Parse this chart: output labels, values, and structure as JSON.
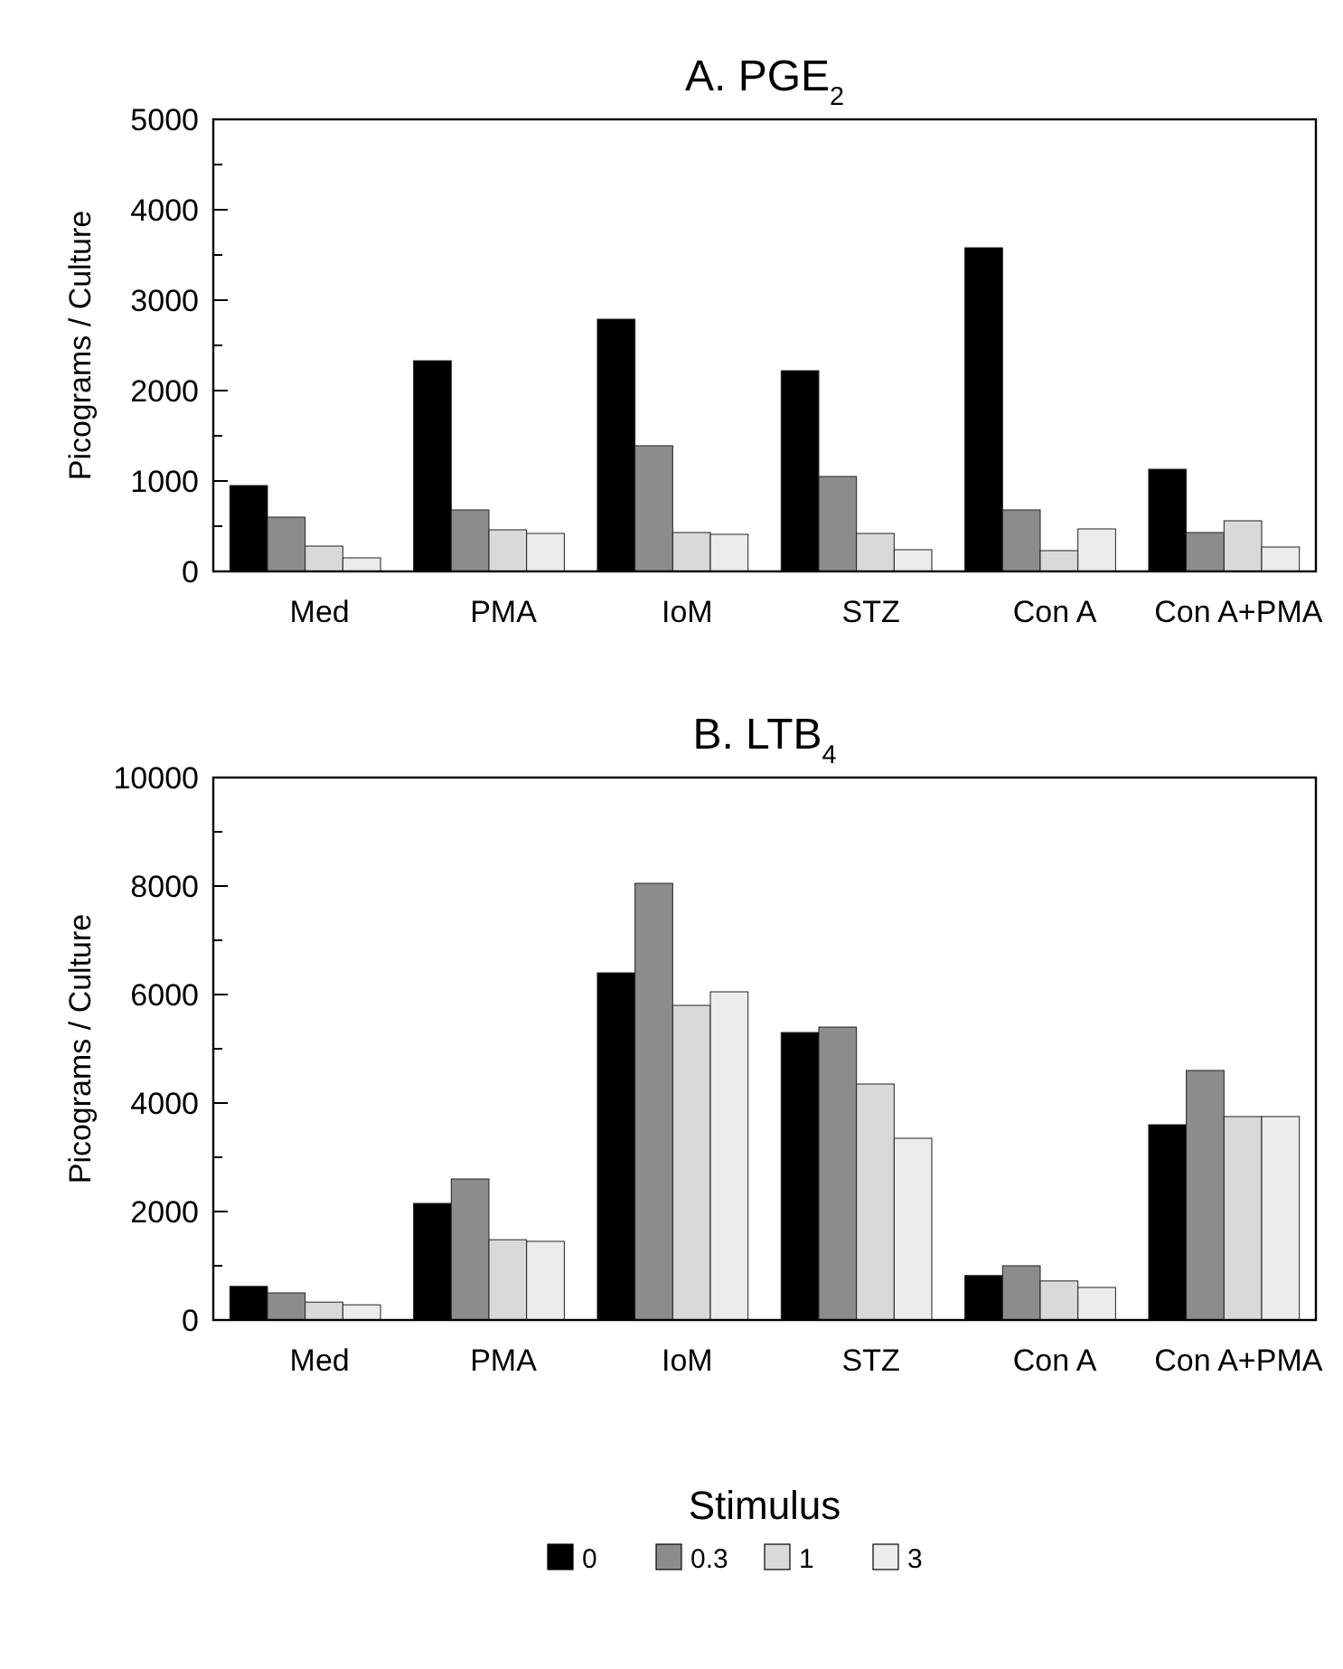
{
  "chart_data": [
    {
      "type": "bar",
      "title": "A. PGE$_{2}$",
      "ylabel": "Picograms / Culture",
      "categories": [
        "Med",
        "PMA",
        "IoM",
        "STZ",
        "Con A",
        "Con A+PMA"
      ],
      "ylim": [
        0,
        5000
      ],
      "yticks": [
        0,
        {
          "value": 500,
          "label": null
        },
        1000,
        {
          "value": 1500,
          "label": null
        },
        2000,
        {
          "value": 2500,
          "label": null
        },
        3000,
        {
          "value": 3500,
          "label": null
        },
        4000,
        {
          "value": 4500,
          "label": null
        },
        5000
      ],
      "grid": false,
      "legend": false,
      "series": [
        {
          "color": "#000000",
          "values": [
            950,
            2330,
            2790,
            2220,
            3580,
            1130
          ]
        },
        {
          "color": "#8c8c8c",
          "values": [
            600,
            680,
            1390,
            1050,
            680,
            430
          ]
        },
        {
          "color": "#d9d9d9",
          "values": [
            280,
            460,
            430,
            420,
            230,
            560
          ]
        },
        {
          "color": "#ececec",
          "values": [
            150,
            420,
            410,
            240,
            470,
            270
          ]
        }
      ]
    },
    {
      "type": "bar",
      "title": "B. LTB$_{4}$",
      "ylabel": "Picograms / Culture",
      "categories": [
        "Med",
        "PMA",
        "IoM",
        "STZ",
        "Con A",
        "Con A+PMA"
      ],
      "ylim": [
        0,
        10000
      ],
      "yticks": [
        0,
        {
          "value": 1000,
          "label": null
        },
        2000,
        {
          "value": 3000,
          "label": null
        },
        4000,
        {
          "value": 5000,
          "label": null
        },
        6000,
        {
          "value": 7000,
          "label": null
        },
        8000,
        {
          "value": 9000,
          "label": null
        },
        10000
      ],
      "grid": false,
      "legend": "bottom",
      "legend_title": "Stimulus",
      "series": [
        {
          "name": "0",
          "color": "#000000",
          "values": [
            620,
            2150,
            6400,
            5300,
            820,
            3600
          ]
        },
        {
          "name": "0.3",
          "color": "#8c8c8c",
          "values": [
            500,
            2600,
            8050,
            5400,
            1000,
            4600
          ]
        },
        {
          "name": "1",
          "color": "#d9d9d9",
          "values": [
            330,
            1480,
            5800,
            4350,
            720,
            3750
          ]
        },
        {
          "name": "3",
          "color": "#ececec",
          "values": [
            280,
            1450,
            6050,
            3350,
            600,
            3750
          ]
        }
      ]
    }
  ]
}
